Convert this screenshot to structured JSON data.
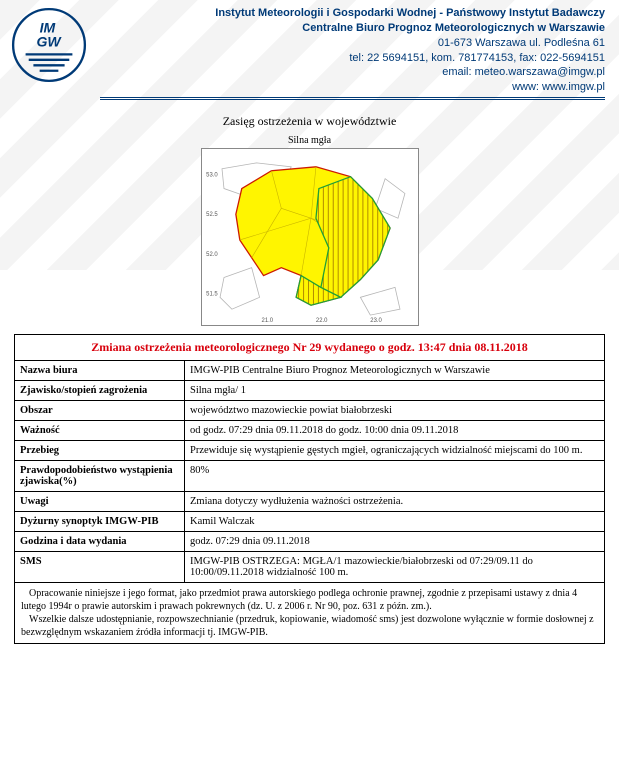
{
  "header": {
    "line1": "Instytut Meteorologii i Gospodarki Wodnej - Państwowy Instytut Badawczy",
    "line2": "Centralne Biuro Prognoz Meteorologicznych w Warszawie",
    "line3": "01-673 Warszawa ul. Podleśna 61",
    "line4": "tel: 22 5694151, kom. 781774153, fax: 022-5694151",
    "line5": "email: meteo.warszawa@imgw.pl",
    "line6": "www: www.imgw.pl"
  },
  "map": {
    "section_title": "Zasięg ostrzeżenia w województwie",
    "subtitle": "Silna mgła",
    "fill_color": "#fff500",
    "highlight_fill": "#fff500",
    "highlight_hatch": "#b08a00",
    "border_red": "#cc1a00",
    "border_gray": "#b5b5b5",
    "border_green": "#1fa038",
    "axis_ticks_y": [
      "53.0",
      "52.5",
      "52.0",
      "51.5"
    ],
    "axis_ticks_x": [
      "21.0",
      "22.0",
      "23.0"
    ]
  },
  "warning": {
    "title": "Zmiana ostrzeżenia meteorologicznego Nr 29 wydanego o godz. 13:47 dnia 08.11.2018",
    "rows": [
      {
        "label": "Nazwa biura",
        "value": "IMGW-PIB Centralne Biuro Prognoz Meteorologicznych w Warszawie"
      },
      {
        "label": "Zjawisko/stopień zagrożenia",
        "value": "Silna mgła/ 1"
      },
      {
        "label": "Obszar",
        "value": "województwo mazowieckie powiat białobrzeski"
      },
      {
        "label": "Ważność",
        "value": "od godz. 07:29 dnia 09.11.2018 do godz. 10:00 dnia 09.11.2018"
      },
      {
        "label": "Przebieg",
        "value": "Przewiduje się wystąpienie gęstych mgieł, ograniczających widzialność miejscami do 100 m."
      },
      {
        "label": "Prawdopodobieństwo wystąpienia zjawiska(%)",
        "value": "80%"
      },
      {
        "label": "Uwagi",
        "value": "Zmiana dotyczy wydłużenia ważności ostrzeżenia."
      },
      {
        "label": "Dyżurny synoptyk IMGW-PIB",
        "value": "Kamil Walczak"
      },
      {
        "label": "Godzina i data wydania",
        "value": "godz. 07:29 dnia 09.11.2018"
      },
      {
        "label": "SMS",
        "value": "IMGW-PIB OSTRZEGA: MGŁA/1 mazowieckie/białobrzeski od 07:29/09.11 do 10:00/09.11.2018 widzialność 100 m."
      }
    ]
  },
  "footnote": {
    "p1": "Opracowanie niniejsze i jego format, jako przedmiot prawa autorskiego podlega ochronie prawnej, zgodnie z przepisami ustawy z dnia 4 lutego 1994r o prawie autorskim i prawach pokrewnych (dz. U. z 2006 r. Nr 90, poz. 631 z późn. zm.).",
    "p2": "Wszelkie dalsze udostępnianie, rozpowszechnianie (przedruk, kopiowanie, wiadomość sms) jest dozwolone wyłącznie w formie dosłownej z bezwzględnym wskazaniem źródła informacji tj. IMGW-PIB."
  },
  "colors": {
    "brand": "#003a77",
    "alert": "#d8000c"
  }
}
